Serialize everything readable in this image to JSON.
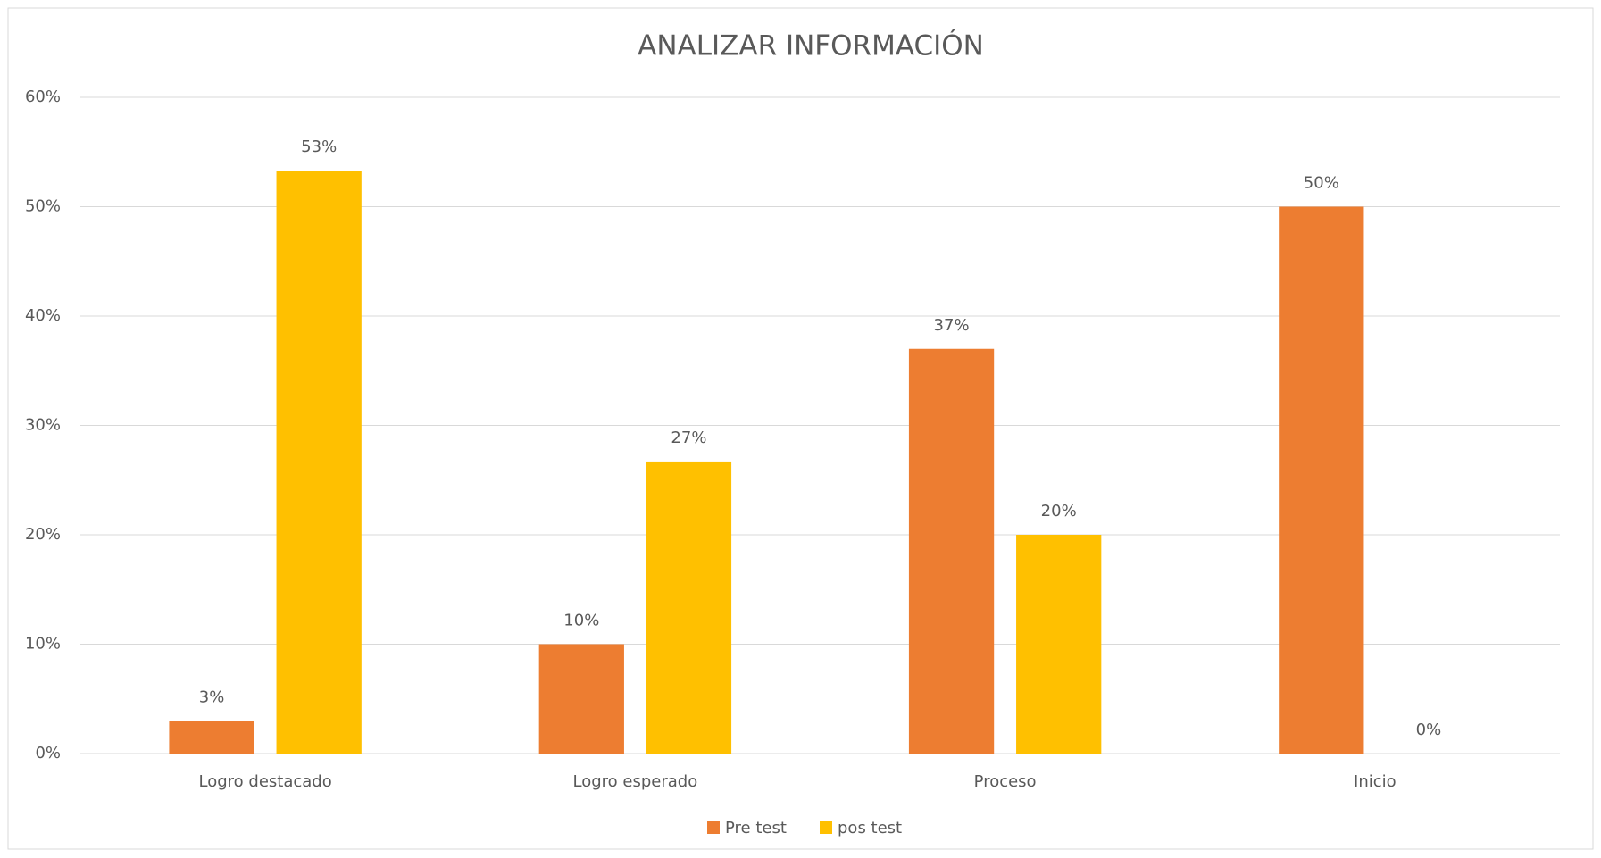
{
  "chart_data": {
    "type": "bar",
    "title": "ANALIZAR INFORMACIÓN",
    "categories": [
      "Logro destacado",
      "Logro esperado",
      "Proceso",
      "Inicio"
    ],
    "series": [
      {
        "name": "Pre test",
        "color": "#ed7d31",
        "values": [
          3,
          10,
          37,
          50
        ],
        "value_labels": [
          "3%",
          "10%",
          "37%",
          "50%"
        ]
      },
      {
        "name": "pos test",
        "color": "#ffc000",
        "values": [
          53.3,
          26.7,
          20,
          0
        ],
        "value_labels": [
          "53%",
          "27%",
          "20%",
          "0%"
        ]
      }
    ],
    "ylim": [
      0,
      60
    ],
    "yticks": [
      {
        "value": 0,
        "label": "0%"
      },
      {
        "value": 10,
        "label": "10%"
      },
      {
        "value": 20,
        "label": "20%"
      },
      {
        "value": 30,
        "label": "30%"
      },
      {
        "value": 40,
        "label": "40%"
      },
      {
        "value": 50,
        "label": "50%"
      },
      {
        "value": 60,
        "label": "60%"
      }
    ],
    "grid": true,
    "legend": "bottom"
  }
}
